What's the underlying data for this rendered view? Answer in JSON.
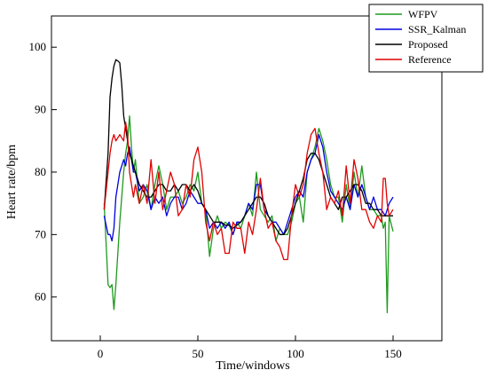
{
  "chart_data": {
    "type": "line",
    "xlabel": "Time/windows",
    "ylabel": "Heart rate/bpm",
    "xlim": [
      -25,
      175
    ],
    "ylim": [
      53,
      105
    ],
    "xticks": [
      0,
      50,
      100,
      150
    ],
    "yticks": [
      60,
      70,
      80,
      90,
      100
    ],
    "grid": false,
    "legend_position": "top-right",
    "series": [
      {
        "name": "WFPV",
        "color": "#1e9a1e",
        "x": [
          2,
          4,
          5,
          6,
          7,
          8,
          10,
          12,
          13,
          14,
          15,
          16,
          17,
          18,
          20,
          22,
          24,
          26,
          28,
          30,
          32,
          34,
          36,
          38,
          40,
          42,
          44,
          46,
          48,
          50,
          52,
          54,
          56,
          58,
          60,
          62,
          64,
          66,
          68,
          70,
          72,
          74,
          76,
          78,
          80,
          82,
          84,
          86,
          88,
          90,
          92,
          94,
          96,
          98,
          100,
          102,
          104,
          106,
          108,
          110,
          112,
          114,
          116,
          118,
          120,
          122,
          124,
          126,
          128,
          130,
          132,
          134,
          136,
          138,
          140,
          142,
          144,
          145,
          146,
          147,
          148,
          150
        ],
        "y": [
          75,
          62,
          61.5,
          62,
          58,
          62,
          72,
          80,
          83,
          85,
          89,
          84,
          80,
          82,
          75,
          76,
          78,
          74,
          78,
          81,
          78,
          74,
          76,
          76,
          77,
          75,
          76,
          78,
          77,
          80,
          75,
          74,
          66.5,
          71,
          73,
          71,
          72,
          71.5,
          70,
          72,
          71,
          73,
          75,
          73,
          80,
          74,
          73,
          72,
          73,
          69,
          71,
          70,
          70,
          72,
          75,
          76,
          72,
          80,
          82,
          84,
          87,
          85,
          82,
          78,
          76,
          76,
          72,
          78,
          74,
          80,
          76,
          81,
          76,
          74,
          74,
          73,
          73,
          71,
          72,
          57.5,
          73,
          70.5
        ]
      },
      {
        "name": "SSR_Kalman",
        "color": "#0000e0",
        "x": [
          2,
          4,
          5,
          6,
          7,
          8,
          10,
          12,
          13,
          14,
          15,
          16,
          17,
          18,
          20,
          22,
          24,
          26,
          28,
          30,
          32,
          34,
          36,
          38,
          40,
          42,
          44,
          46,
          48,
          50,
          52,
          54,
          56,
          58,
          60,
          62,
          64,
          66,
          68,
          70,
          72,
          74,
          76,
          78,
          80,
          82,
          84,
          86,
          88,
          90,
          92,
          94,
          96,
          98,
          100,
          102,
          104,
          106,
          108,
          110,
          112,
          114,
          116,
          118,
          120,
          122,
          124,
          126,
          128,
          130,
          132,
          134,
          136,
          138,
          140,
          142,
          144,
          146,
          148,
          150
        ],
        "y": [
          73,
          70,
          70,
          69,
          71,
          76,
          80,
          82,
          81,
          83,
          84,
          82,
          80,
          80,
          77,
          78,
          77,
          74,
          76,
          75,
          76,
          73,
          75,
          76,
          76,
          74,
          75,
          77,
          76,
          75,
          75,
          74,
          71,
          72,
          71,
          72,
          71,
          72,
          70,
          72,
          72,
          73,
          75,
          74,
          78,
          78,
          74,
          73,
          72,
          72,
          71,
          70,
          72,
          74,
          76,
          77,
          76,
          80,
          82,
          83,
          86,
          84,
          80,
          77,
          76,
          75,
          74,
          76,
          74,
          78,
          76,
          78,
          76,
          74,
          76,
          74,
          74,
          73,
          75,
          76
        ]
      },
      {
        "name": "Proposed",
        "color": "#000000",
        "x": [
          2,
          4,
          5,
          6,
          7,
          8,
          9,
          10,
          11,
          12,
          13,
          14,
          15,
          16,
          18,
          20,
          22,
          24,
          26,
          28,
          30,
          32,
          34,
          36,
          38,
          40,
          42,
          44,
          46,
          48,
          50,
          52,
          54,
          56,
          58,
          60,
          62,
          64,
          66,
          68,
          70,
          72,
          74,
          76,
          78,
          80,
          82,
          84,
          86,
          88,
          90,
          92,
          94,
          96,
          98,
          100,
          102,
          104,
          106,
          108,
          110,
          112,
          114,
          116,
          118,
          120,
          122,
          124,
          126,
          128,
          130,
          132,
          134,
          136,
          138,
          140,
          142,
          144,
          146,
          148,
          150
        ],
        "y": [
          74,
          83,
          92,
          95,
          97,
          98,
          97.8,
          97.5,
          94,
          89,
          87,
          85,
          83,
          82,
          80,
          78,
          77,
          76,
          76,
          77,
          78,
          78,
          77,
          77,
          78,
          77,
          78,
          78,
          77,
          78,
          77,
          75,
          74,
          73,
          72,
          72,
          72,
          71.5,
          71.5,
          71,
          71.5,
          72,
          73,
          74,
          75,
          76,
          76,
          75,
          73,
          72,
          71,
          70,
          70,
          71,
          73,
          75,
          77,
          79,
          82,
          83,
          83,
          82,
          80,
          78,
          76,
          75,
          74,
          76,
          76,
          77,
          78,
          78,
          77,
          75,
          75,
          74,
          74,
          73,
          73,
          73,
          73
        ]
      },
      {
        "name": "Reference",
        "color": "#e00000",
        "x": [
          2,
          4,
          5,
          6,
          7,
          8,
          10,
          12,
          13,
          14,
          15,
          16,
          17,
          18,
          20,
          22,
          24,
          26,
          28,
          30,
          32,
          34,
          36,
          38,
          40,
          42,
          44,
          46,
          48,
          50,
          52,
          54,
          56,
          58,
          60,
          62,
          64,
          66,
          68,
          70,
          72,
          74,
          76,
          78,
          80,
          82,
          84,
          86,
          88,
          90,
          92,
          94,
          96,
          98,
          100,
          102,
          104,
          106,
          108,
          110,
          112,
          114,
          116,
          118,
          120,
          122,
          124,
          126,
          128,
          130,
          132,
          134,
          136,
          138,
          140,
          142,
          144,
          145,
          146,
          147,
          148,
          150
        ],
        "y": [
          74,
          80,
          83,
          85,
          86,
          85,
          86,
          85,
          88,
          86,
          80,
          78,
          76,
          78,
          75,
          78,
          75,
          82,
          75,
          80,
          74,
          77,
          80,
          78,
          73,
          74,
          78,
          76,
          82,
          84,
          80,
          72,
          69,
          72,
          70,
          71,
          67,
          67,
          72,
          71,
          71,
          67,
          72,
          70,
          74,
          79,
          74,
          71,
          72,
          69,
          68,
          66,
          66,
          73,
          78,
          76,
          78,
          83,
          86,
          87,
          83,
          80,
          74,
          76,
          75,
          77,
          73,
          81,
          75,
          82,
          79,
          74,
          74,
          72,
          71,
          73,
          72,
          79,
          79,
          75,
          73,
          74
        ]
      }
    ]
  }
}
